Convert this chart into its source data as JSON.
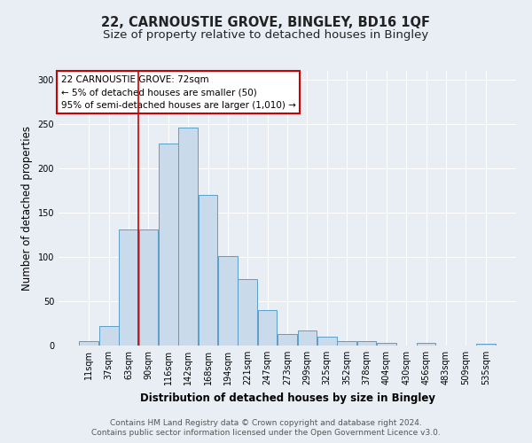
{
  "title1": "22, CARNOUSTIE GROVE, BINGLEY, BD16 1QF",
  "title2": "Size of property relative to detached houses in Bingley",
  "xlabel": "Distribution of detached houses by size in Bingley",
  "ylabel": "Number of detached properties",
  "categories": [
    "11sqm",
    "37sqm",
    "63sqm",
    "90sqm",
    "116sqm",
    "142sqm",
    "168sqm",
    "194sqm",
    "221sqm",
    "247sqm",
    "273sqm",
    "299sqm",
    "325sqm",
    "352sqm",
    "378sqm",
    "404sqm",
    "430sqm",
    "456sqm",
    "483sqm",
    "509sqm",
    "535sqm"
  ],
  "values": [
    5,
    22,
    131,
    131,
    228,
    246,
    170,
    101,
    75,
    40,
    13,
    17,
    10,
    5,
    5,
    3,
    0,
    3,
    0,
    0,
    2
  ],
  "bar_color": "#c9daea",
  "bar_edge_color": "#5b9ec9",
  "bar_width": 0.97,
  "red_line_x": 2.5,
  "annotation_text": "22 CARNOUSTIE GROVE: 72sqm\n← 5% of detached houses are smaller (50)\n95% of semi-detached houses are larger (1,010) →",
  "annotation_box_color": "#ffffff",
  "annotation_box_edge": "#cc0000",
  "ylim": [
    0,
    310
  ],
  "yticks": [
    0,
    50,
    100,
    150,
    200,
    250,
    300
  ],
  "footer1": "Contains HM Land Registry data © Crown copyright and database right 2024.",
  "footer2": "Contains public sector information licensed under the Open Government Licence v3.0.",
  "bg_color": "#e8eef4",
  "plot_bg_color": "#e8eef4",
  "grid_color": "#ffffff",
  "title_fontsize": 10.5,
  "subtitle_fontsize": 9.5,
  "label_fontsize": 8.5,
  "tick_fontsize": 7,
  "footer_fontsize": 6.5,
  "annotation_fontsize": 7.5
}
